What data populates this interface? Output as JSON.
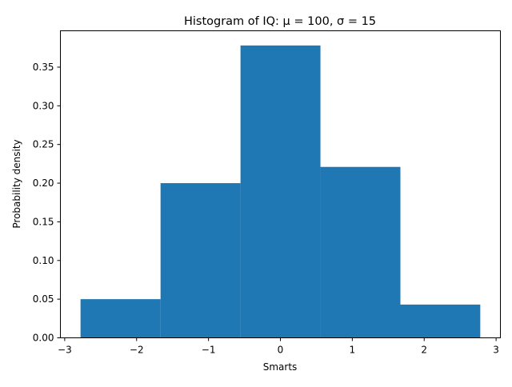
{
  "chart_data": {
    "type": "bar",
    "title": "Histogram of IQ: μ = 100, σ = 15",
    "xlabel": "Smarts",
    "ylabel": "Probability density",
    "bins": [
      {
        "x0": -2.78,
        "x1": -1.667,
        "density": 0.05
      },
      {
        "x0": -1.667,
        "x1": -0.555,
        "density": 0.2
      },
      {
        "x0": -0.555,
        "x1": 0.557,
        "density": 0.378
      },
      {
        "x0": 0.557,
        "x1": 1.669,
        "density": 0.221
      },
      {
        "x0": 1.669,
        "x1": 2.78,
        "density": 0.043
      }
    ],
    "xlim": [
      -3.06,
      3.06
    ],
    "ylim": [
      0,
      0.397
    ],
    "xticks": [
      -3,
      -2,
      -1,
      0,
      1,
      2,
      3
    ],
    "xtick_labels": [
      "−3",
      "−2",
      "−1",
      "0",
      "1",
      "2",
      "3"
    ],
    "yticks": [
      0.0,
      0.05,
      0.1,
      0.15,
      0.2,
      0.25,
      0.3,
      0.35
    ],
    "ytick_labels": [
      "0.00",
      "0.05",
      "0.10",
      "0.15",
      "0.20",
      "0.25",
      "0.30",
      "0.35"
    ],
    "bar_color": "#1f77b4",
    "grid": false,
    "legend": "none"
  }
}
